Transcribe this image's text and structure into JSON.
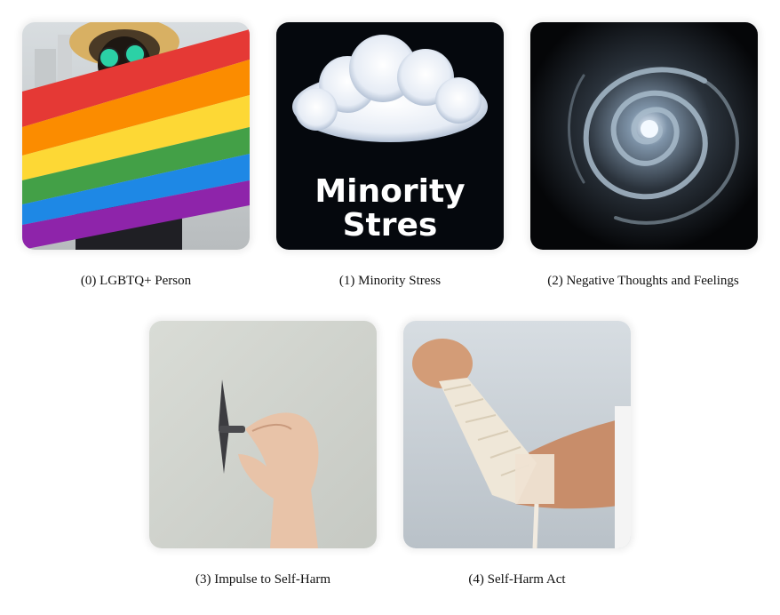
{
  "panels": [
    {
      "caption": "(0) LGBTQ+ Person",
      "icon": "pride-flag-person"
    },
    {
      "caption": "(1) Minority Stress",
      "icon": "storm-cloud",
      "overlay_text": [
        "Minority",
        "Stres"
      ]
    },
    {
      "caption": "(2) Negative Thoughts and Feelings",
      "icon": "smoke-spiral"
    },
    {
      "caption": "(3) Impulse to Self-Harm",
      "icon": "hand-with-blade"
    },
    {
      "caption": "(4) Self-Harm Act",
      "icon": "bandaged-arm"
    }
  ],
  "colors": {
    "flag": [
      "#e53935",
      "#fb8c00",
      "#fdd835",
      "#43a047",
      "#1e88e5",
      "#8e24aa"
    ]
  }
}
